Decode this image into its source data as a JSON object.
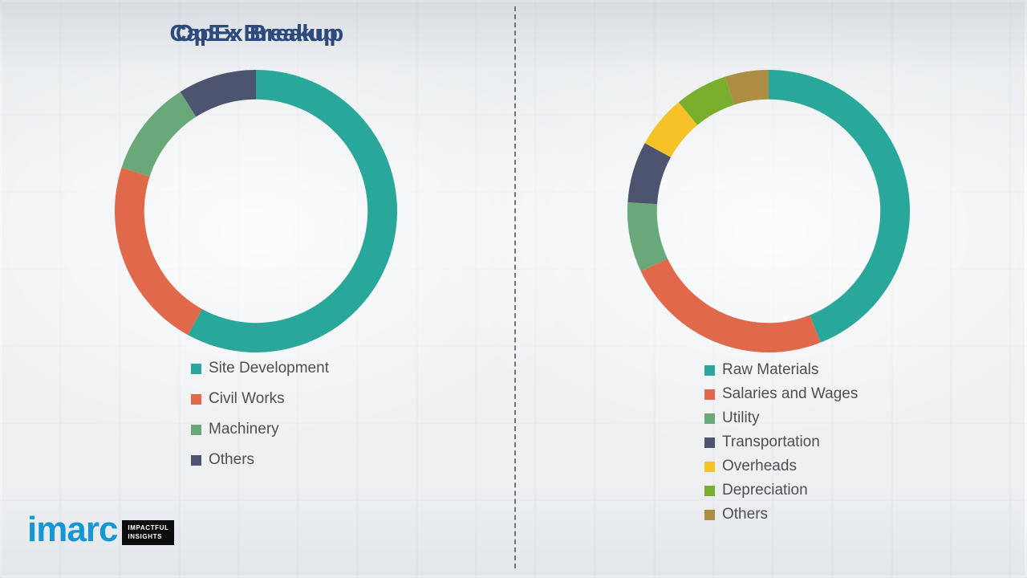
{
  "chart_data": [
    {
      "type": "pie",
      "variant": "donut",
      "title": "CapEx Breakup",
      "labels": [
        "Site Development",
        "Civil Works",
        "Machinery",
        "Others"
      ],
      "values": [
        58,
        22,
        11,
        9
      ],
      "colors": [
        "#2aa79b",
        "#e0694b",
        "#69a879",
        "#4c5470"
      ],
      "values_are_estimated_percent": true,
      "start_angle": "top",
      "direction": "clockwise",
      "legend_position": "bottom-left"
    },
    {
      "type": "pie",
      "variant": "donut",
      "title": "OpEx Breakup",
      "labels": [
        "Raw Materials",
        "Salaries and Wages",
        "Utility",
        "Transportation",
        "Overheads",
        "Depreciation",
        "Others"
      ],
      "values": [
        44,
        24,
        8,
        7,
        6,
        6,
        5
      ],
      "colors": [
        "#2aa79b",
        "#e0694b",
        "#69a879",
        "#4c5470",
        "#f7c227",
        "#79af2d",
        "#ae8e44"
      ],
      "values_are_estimated_percent": true,
      "start_angle": "top",
      "direction": "clockwise",
      "legend_position": "bottom-left"
    }
  ],
  "logo": {
    "brand": "imarc",
    "tagline": [
      "IMPACTFUL",
      "INSIGHTS"
    ]
  }
}
